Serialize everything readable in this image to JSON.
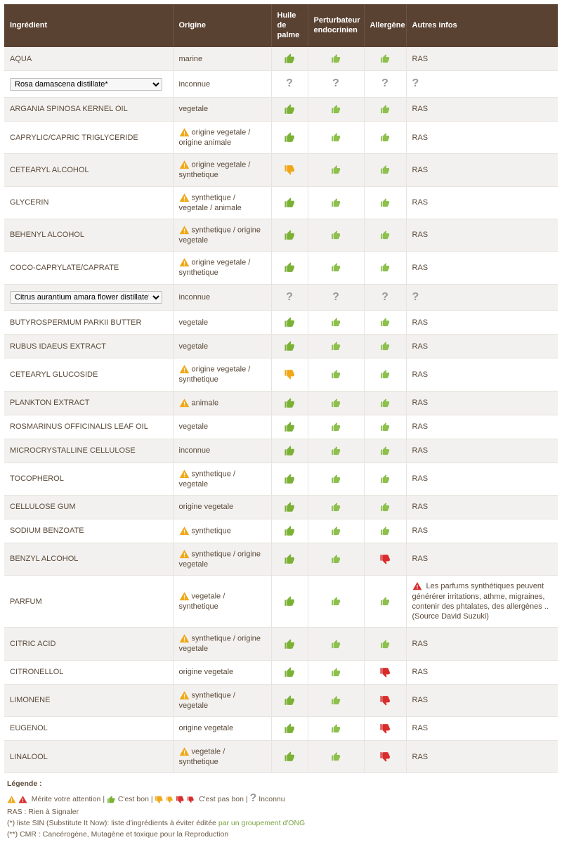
{
  "colors": {
    "header_bg": "#5a4232",
    "row_odd": "#f3f1ef",
    "row_even": "#ffffff",
    "green": "#7bb135",
    "green_small": "#8dc04d",
    "orange": "#f0a818",
    "red": "#d82d2d",
    "grey": "#999999",
    "link": "#7aa33f"
  },
  "columns": [
    "Ingrédient",
    "Origine",
    "Huile de palme",
    "Perturbateur endocrinien",
    "Allergène",
    "Autres infos"
  ],
  "rows": [
    {
      "ingredient": "AQUA",
      "origin": "marine",
      "hp": "up-green",
      "pe": "up-green-sm",
      "al": "up-green-sm",
      "ai": "RAS"
    },
    {
      "ingredient_select": "Rosa damascena distillate*",
      "origin": "inconnue",
      "hp": "q",
      "pe": "q",
      "al": "q",
      "ai_q": true
    },
    {
      "ingredient": "ARGANIA SPINOSA KERNEL OIL",
      "origin": "vegetale",
      "hp": "up-green",
      "pe": "up-green-sm",
      "al": "up-green-sm",
      "ai": "RAS"
    },
    {
      "ingredient": "CAPRYLIC/CAPRIC TRIGLYCERIDE",
      "origin_warn": "origine vegetale / origine animale",
      "hp": "up-green",
      "pe": "up-green-sm",
      "al": "up-green-sm",
      "ai": "RAS"
    },
    {
      "ingredient": "CETEARYL ALCOHOL",
      "origin_warn": "origine vegetale / synthetique",
      "hp": "down-orange",
      "pe": "up-green-sm",
      "al": "up-green-sm",
      "ai": "RAS"
    },
    {
      "ingredient": "GLYCERIN",
      "origin_warn": "synthetique / vegetale / animale",
      "hp": "up-green",
      "pe": "up-green-sm",
      "al": "up-green-sm",
      "ai": "RAS"
    },
    {
      "ingredient": "BEHENYL ALCOHOL",
      "origin_warn": "synthetique / origine vegetale",
      "hp": "up-green",
      "pe": "up-green-sm",
      "al": "up-green-sm",
      "ai": "RAS"
    },
    {
      "ingredient": "COCO-CAPRYLATE/CAPRATE",
      "origin_warn": "origine vegetale / synthetique",
      "hp": "up-green",
      "pe": "up-green-sm",
      "al": "up-green-sm",
      "ai": "RAS"
    },
    {
      "ingredient_select": "Citrus aurantium amara flower distillate*",
      "origin": "inconnue",
      "hp": "q",
      "pe": "q",
      "al": "q",
      "ai_q": true
    },
    {
      "ingredient": "BUTYROSPERMUM PARKII BUTTER",
      "origin": "vegetale",
      "hp": "up-green",
      "pe": "up-green-sm",
      "al": "up-green-sm",
      "ai": "RAS"
    },
    {
      "ingredient": "RUBUS IDAEUS EXTRACT",
      "origin": "vegetale",
      "hp": "up-green",
      "pe": "up-green-sm",
      "al": "up-green-sm",
      "ai": "RAS"
    },
    {
      "ingredient": "CETEARYL GLUCOSIDE",
      "origin_warn": "origine vegetale / synthetique",
      "hp": "down-orange",
      "pe": "up-green-sm",
      "al": "up-green-sm",
      "ai": "RAS"
    },
    {
      "ingredient": "PLANKTON EXTRACT",
      "origin_warn": "animale",
      "hp": "up-green",
      "pe": "up-green-sm",
      "al": "up-green-sm",
      "ai": "RAS"
    },
    {
      "ingredient": "ROSMARINUS OFFICINALIS LEAF OIL",
      "origin": "vegetale",
      "hp": "up-green",
      "pe": "up-green-sm",
      "al": "up-green-sm",
      "ai": "RAS"
    },
    {
      "ingredient": "MICROCRYSTALLINE CELLULOSE",
      "origin": "inconnue",
      "hp": "up-green",
      "pe": "up-green-sm",
      "al": "up-green-sm",
      "ai": "RAS"
    },
    {
      "ingredient": "TOCOPHEROL",
      "origin_warn": "synthetique / vegetale",
      "hp": "up-green",
      "pe": "up-green-sm",
      "al": "up-green-sm",
      "ai": "RAS"
    },
    {
      "ingredient": "CELLULOSE GUM",
      "origin": "origine vegetale",
      "hp": "up-green",
      "pe": "up-green-sm",
      "al": "up-green-sm",
      "ai": "RAS"
    },
    {
      "ingredient": "SODIUM BENZOATE",
      "origin_warn": "synthetique",
      "hp": "up-green",
      "pe": "up-green-sm",
      "al": "up-green-sm",
      "ai": "RAS"
    },
    {
      "ingredient": "BENZYL ALCOHOL",
      "origin_warn": "synthetique / origine vegetale",
      "hp": "up-green",
      "pe": "up-green-sm",
      "al": "down-red",
      "ai": "RAS"
    },
    {
      "ingredient": "PARFUM",
      "origin_warn": "vegetale / synthetique",
      "hp": "up-green",
      "pe": "up-green-sm",
      "al": "up-green-sm",
      "ai_warn": "Les parfums synthétiques peuvent générérer irritations, athme, migraines, contenir des phtalates, des allergènes .. (Source David Suzuki)"
    },
    {
      "ingredient": "CITRIC ACID",
      "origin_warn": "synthetique / origine vegetale",
      "hp": "up-green",
      "pe": "up-green-sm",
      "al": "up-green-sm",
      "ai": "RAS"
    },
    {
      "ingredient": "CITRONELLOL",
      "origin": "origine vegetale",
      "hp": "up-green",
      "pe": "up-green-sm",
      "al": "down-red",
      "ai": "RAS"
    },
    {
      "ingredient": "LIMONENE",
      "origin_warn": "synthetique / vegetale",
      "hp": "up-green",
      "pe": "up-green-sm",
      "al": "down-red",
      "ai": "RAS"
    },
    {
      "ingredient": "EUGENOL",
      "origin": "origine vegetale",
      "hp": "up-green",
      "pe": "up-green-sm",
      "al": "down-red",
      "ai": "RAS"
    },
    {
      "ingredient": "LINALOOL",
      "origin_warn": "vegetale / synthetique",
      "hp": "up-green",
      "pe": "up-green-sm",
      "al": "down-red",
      "ai": "RAS"
    }
  ],
  "legend": {
    "title": "Légende :",
    "attention": "Mérite votre attention",
    "bon": "C'est bon",
    "pasbon": "C'est pas bon",
    "inconnu": "Inconnu",
    "ras": "RAS : Rien à Signaler",
    "sin_pre": "(*) liste SIN (Substitute It Now): liste d'ingrédients à éviter éditée ",
    "sin_link": "par un groupement d'ONG",
    "cmr": "(**) CMR : Cancérogène, Mutagène et toxique pour la Reproduction"
  }
}
